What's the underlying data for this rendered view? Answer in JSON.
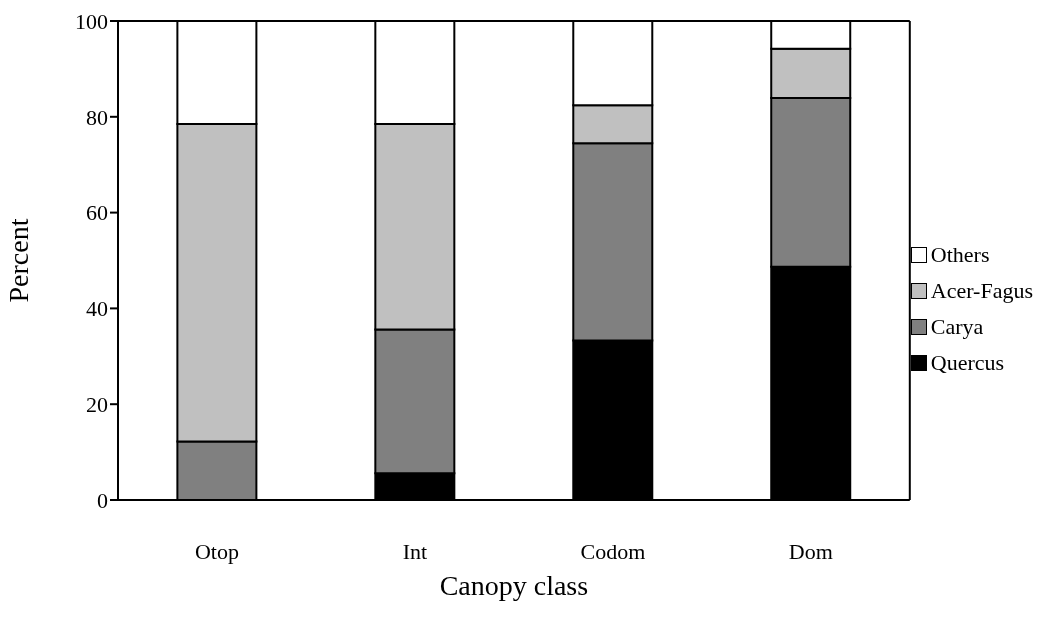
{
  "chart_data": {
    "type": "bar",
    "stacked": true,
    "xlabel": "Canopy class",
    "ylabel": "Percent",
    "categories": [
      "Otop",
      "Int",
      "Codom",
      "Dom"
    ],
    "series": [
      {
        "name": "Quercus",
        "color": "#000000",
        "values": [
          0,
          5.6,
          33.3,
          48.7
        ]
      },
      {
        "name": "Carya",
        "color": "#808080",
        "values": [
          12.2,
          30,
          41.2,
          35.2
        ]
      },
      {
        "name": "Acer-Fagus",
        "color": "#c0c0c0",
        "values": [
          66.3,
          42.9,
          7.9,
          10.3
        ]
      },
      {
        "name": "Others",
        "color": "#ffffff",
        "values": [
          21.5,
          21.5,
          17.6,
          5.8
        ]
      }
    ],
    "ylim": [
      0,
      100
    ],
    "yticks": [
      0,
      20,
      40,
      60,
      80,
      100
    ],
    "legend": "right"
  }
}
